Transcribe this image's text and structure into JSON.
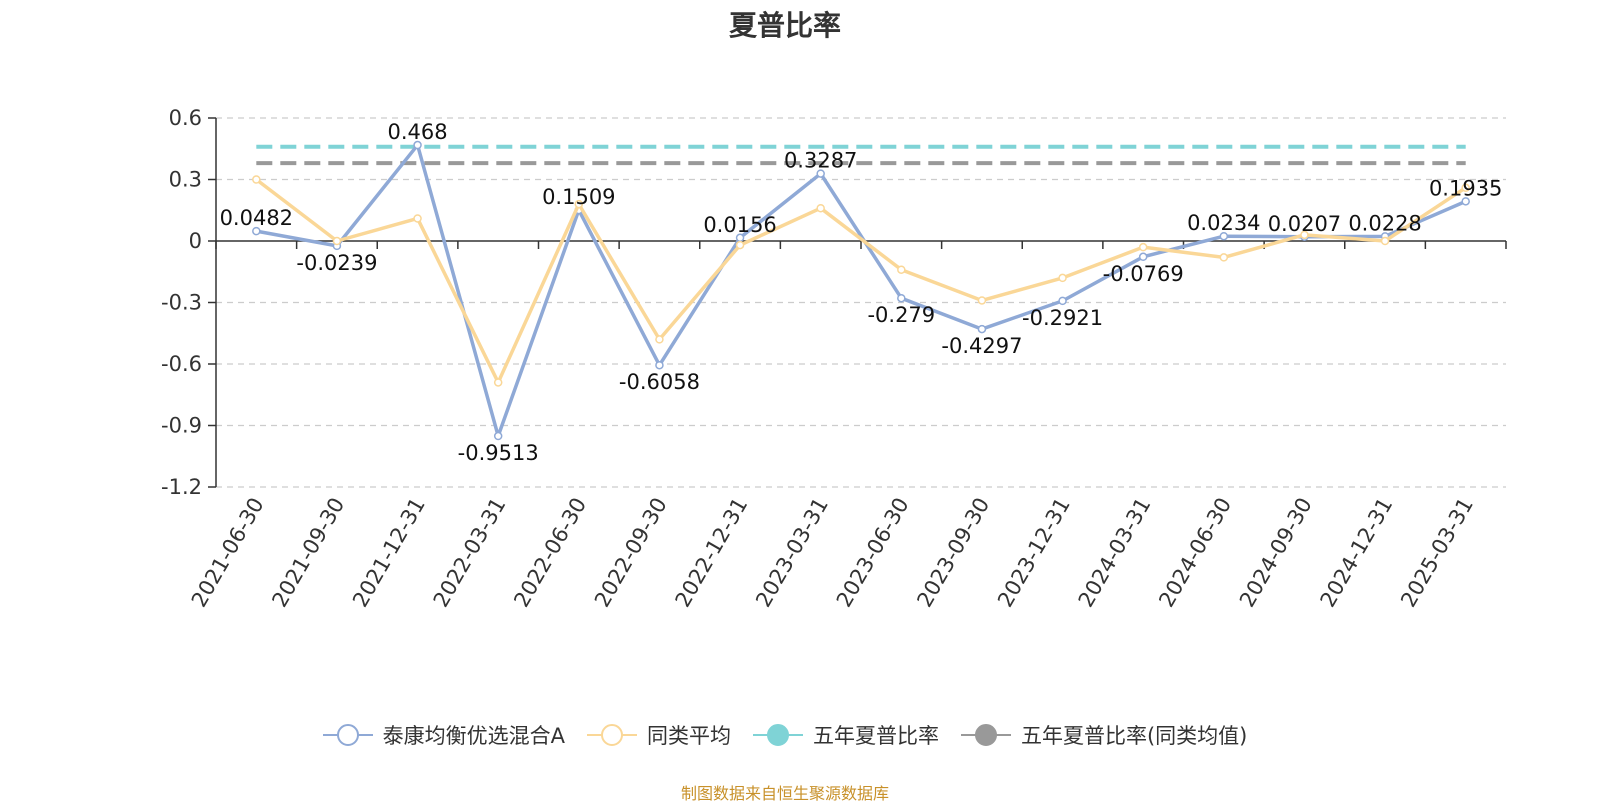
{
  "chart_data": {
    "type": "line",
    "title": "夏普比率",
    "categories": [
      "2021-06-30",
      "2021-09-30",
      "2021-12-31",
      "2022-03-31",
      "2022-06-30",
      "2022-09-30",
      "2022-12-31",
      "2023-03-31",
      "2023-06-30",
      "2023-09-30",
      "2023-12-31",
      "2024-03-31",
      "2024-06-30",
      "2024-09-30",
      "2024-12-31",
      "2025-03-31"
    ],
    "ylim": [
      -1.2,
      0.6
    ],
    "yticks": [
      0.6,
      0.3,
      0,
      -0.3,
      -0.6,
      -0.9,
      -1.2
    ],
    "grid": true,
    "legend_position": "bottom",
    "series": [
      {
        "name": "泰康均衡优选混合A",
        "color": "#8fa9d6",
        "values": [
          0.0482,
          -0.0239,
          0.468,
          -0.9513,
          0.1509,
          -0.6058,
          0.0156,
          0.3287,
          -0.279,
          -0.4297,
          -0.2921,
          -0.0769,
          0.0234,
          0.0207,
          0.0228,
          0.1935
        ],
        "labels": [
          "0.0482",
          "-0.0239",
          "0.468",
          "-0.9513",
          "0.1509",
          "-0.6058",
          "0.0156",
          "0.3287",
          "-0.279",
          "-0.4297",
          "-0.2921",
          "-0.0769",
          "0.0234",
          "0.0207",
          "0.0228",
          "0.1935"
        ]
      },
      {
        "name": "同类平均",
        "color": "#fad797",
        "values": [
          0.3,
          0.0,
          0.11,
          -0.69,
          0.18,
          -0.48,
          -0.02,
          0.16,
          -0.14,
          -0.29,
          -0.18,
          -0.03,
          -0.08,
          0.03,
          0.0,
          0.26
        ]
      },
      {
        "name": "五年夏普比率",
        "color": "#7fd3d6",
        "type": "hline",
        "value": 0.46
      },
      {
        "name": "五年夏普比率(同类均值)",
        "color": "#999999",
        "type": "hline",
        "value": 0.38
      }
    ]
  },
  "legend": {
    "items": [
      {
        "label": "泰康均衡优选混合A",
        "color": "#8fa9d6",
        "filled": false
      },
      {
        "label": "同类平均",
        "color": "#fad797",
        "filled": false
      },
      {
        "label": "五年夏普比率",
        "color": "#7fd3d6",
        "filled": true
      },
      {
        "label": "五年夏普比率(同类均值)",
        "color": "#999999",
        "filled": true
      }
    ]
  },
  "source": "制图数据来自恒生聚源数据库"
}
